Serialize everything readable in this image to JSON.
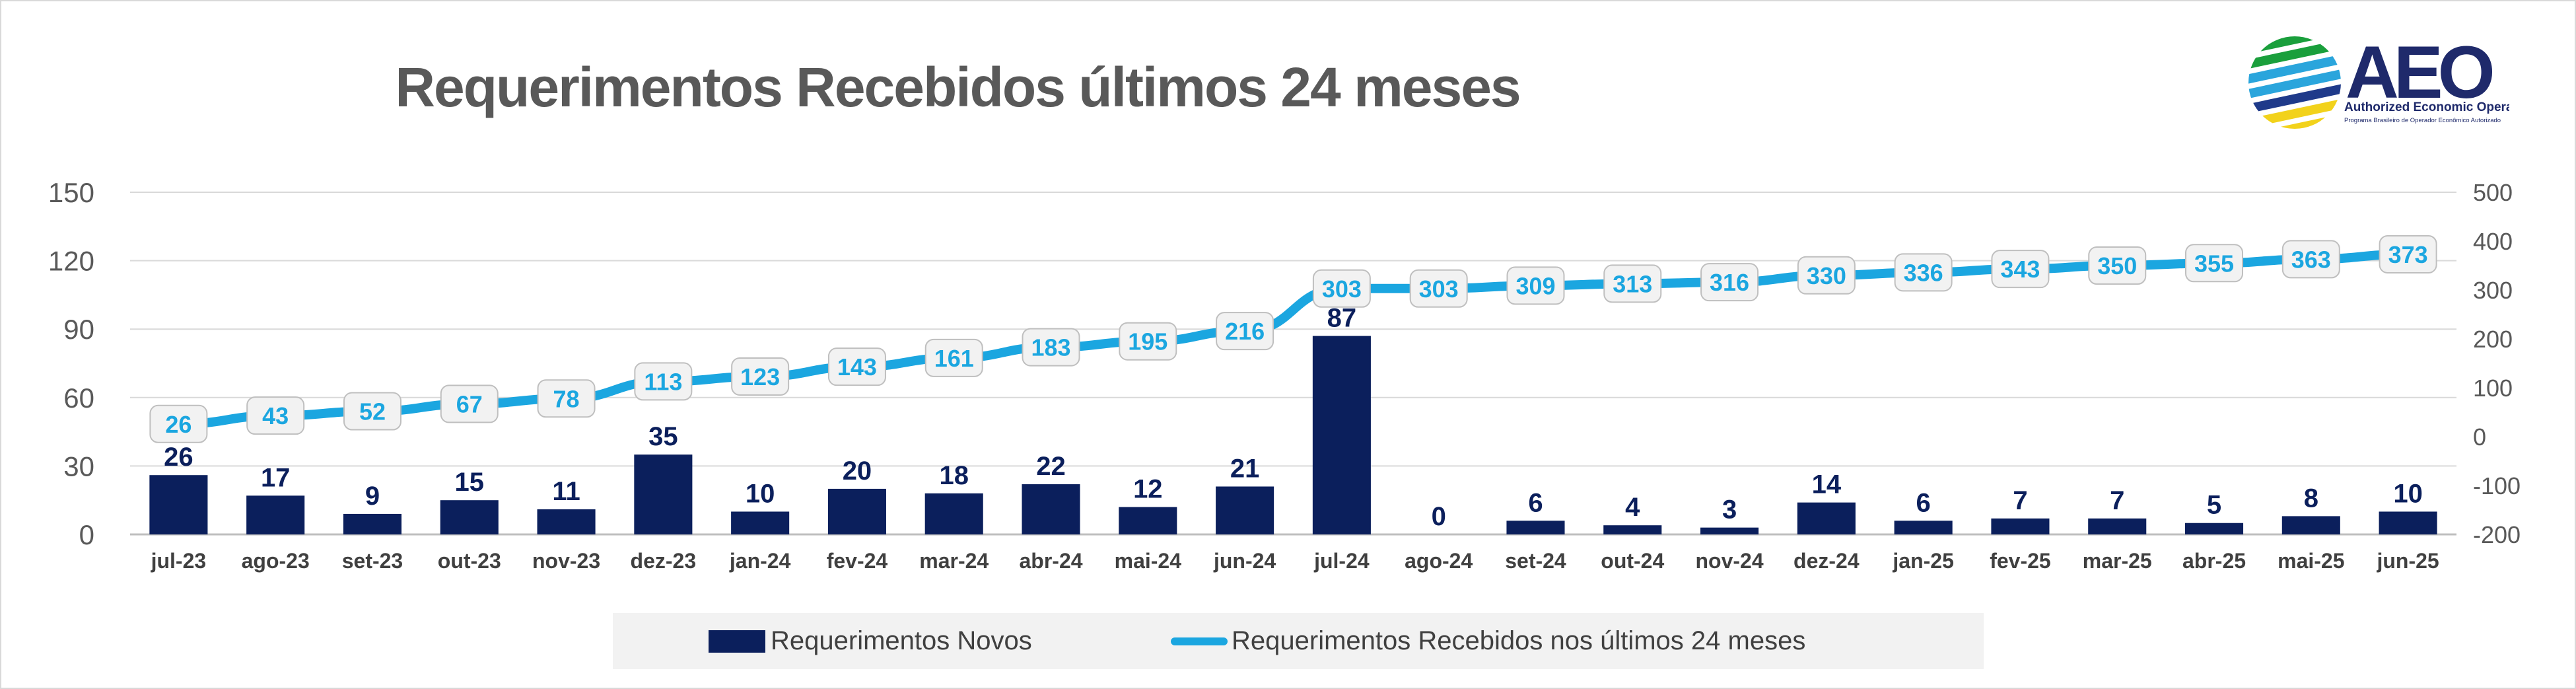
{
  "chart_data": {
    "type": "bar+line",
    "title": "Requerimentos Recebidos últimos 24 meses",
    "categories": [
      "jul-23",
      "ago-23",
      "set-23",
      "out-23",
      "nov-23",
      "dez-23",
      "jan-24",
      "fev-24",
      "mar-24",
      "abr-24",
      "mai-24",
      "jun-24",
      "jul-24",
      "ago-24",
      "set-24",
      "out-24",
      "nov-24",
      "dez-24",
      "jan-25",
      "fev-25",
      "mar-25",
      "abr-25",
      "mai-25",
      "jun-25"
    ],
    "series": [
      {
        "name": "Requerimentos Novos",
        "type": "bar",
        "axis": "left",
        "color": "#0b1f5c",
        "values": [
          26,
          17,
          9,
          15,
          11,
          35,
          10,
          20,
          18,
          22,
          12,
          21,
          87,
          0,
          6,
          4,
          3,
          14,
          6,
          7,
          7,
          5,
          8,
          10
        ]
      },
      {
        "name": "Requerimentos Recebidos nos últimos 24 meses",
        "type": "line",
        "axis": "right",
        "color": "#1ba6e0",
        "values": [
          26,
          43,
          52,
          67,
          78,
          113,
          123,
          143,
          161,
          183,
          195,
          216,
          303,
          303,
          309,
          313,
          316,
          330,
          336,
          343,
          350,
          355,
          363,
          373
        ]
      }
    ],
    "left_axis": {
      "min": 0,
      "max": 150,
      "ticks": [
        "0",
        "30",
        "60",
        "90",
        "120",
        "150"
      ]
    },
    "right_axis": {
      "min": -200,
      "max": 500,
      "ticks": [
        "-200",
        "-100",
        "0",
        "100",
        "200",
        "300",
        "400",
        "500"
      ]
    },
    "legend_position": "bottom",
    "grid": true
  },
  "logo": {
    "acronym": "AEO",
    "name": "Authorized Economic Operator",
    "subtitle": "Programa Brasileiro de Operador Econômico Autorizado"
  }
}
